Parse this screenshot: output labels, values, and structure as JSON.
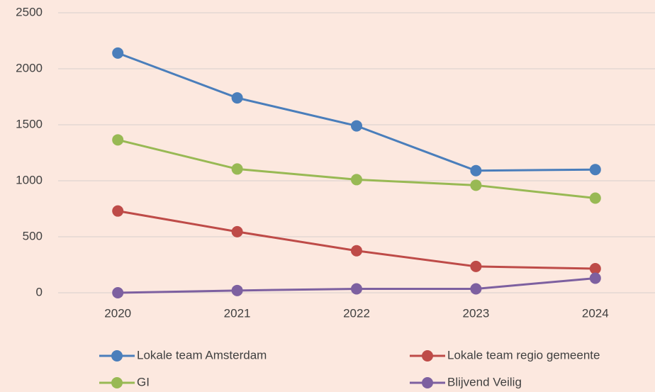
{
  "chart_data": {
    "type": "line",
    "categories": [
      "2020",
      "2021",
      "2022",
      "2023",
      "2024"
    ],
    "series": [
      {
        "name": "Lokale team Amsterdam",
        "color": "#4a7ebb",
        "values": [
          2140,
          1740,
          1490,
          1090,
          1100
        ]
      },
      {
        "name": "Lokale team regio gemeente",
        "color": "#be4b48",
        "values": [
          730,
          545,
          375,
          235,
          215
        ]
      },
      {
        "name": "GI",
        "color": "#98b954",
        "values": [
          1365,
          1105,
          1010,
          960,
          845
        ]
      },
      {
        "name": "Blijvend Veilig",
        "color": "#7d60a0",
        "values": [
          0,
          20,
          35,
          35,
          130
        ]
      }
    ],
    "ylim": [
      0,
      2500
    ],
    "yticks": [
      0,
      500,
      1000,
      1500,
      2000,
      2500
    ],
    "grid": true,
    "legend": "bottom"
  }
}
